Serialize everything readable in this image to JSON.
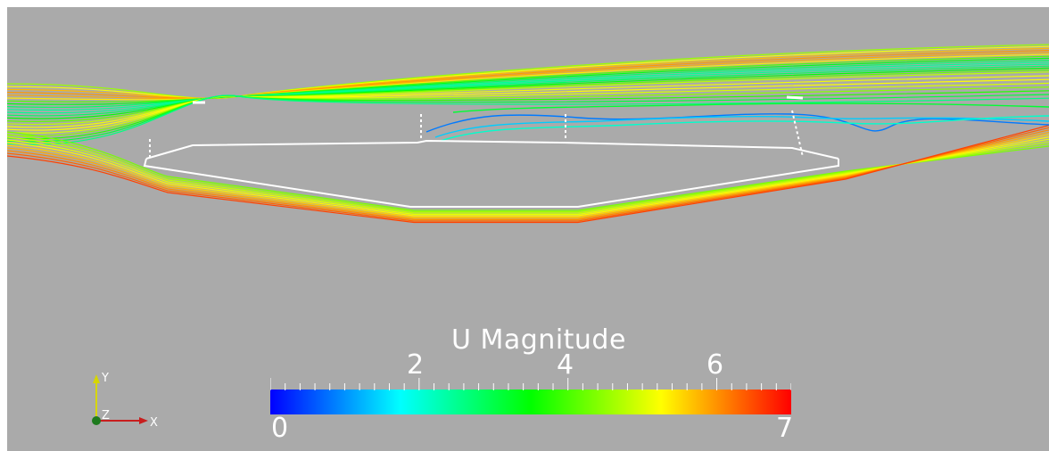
{
  "legend": {
    "title": "U Magnitude",
    "min_label": "0",
    "max_label": "7",
    "tick_labels": [
      "2",
      "4",
      "6"
    ],
    "range": [
      0,
      7
    ],
    "colormap": [
      "#0000ff",
      "#00ffff",
      "#00ff00",
      "#ffff00",
      "#ff0000"
    ]
  },
  "axes": {
    "x_label": "X",
    "y_label": "Y",
    "z_label": "Z",
    "x_color": "#c81e1e",
    "y_color": "#d6d600",
    "z_color": "#1e7a1e"
  },
  "colors": {
    "background": "#aaaaaa",
    "geometry_outline": "#ffffff"
  }
}
